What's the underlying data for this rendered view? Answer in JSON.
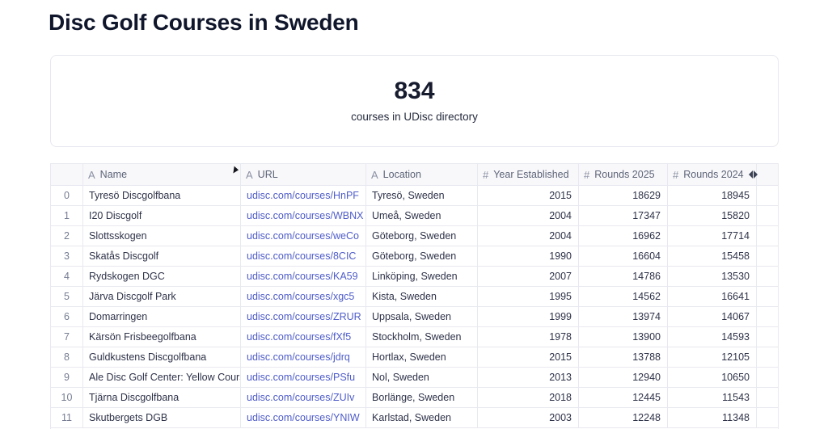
{
  "page": {
    "title": "Disc Golf Courses in Sweden"
  },
  "metric_card": {
    "value": "834",
    "label": "courses in UDisc directory"
  },
  "table": {
    "columns": [
      {
        "icon": "A",
        "label": "Name",
        "field": "name",
        "align": "left"
      },
      {
        "icon": "A",
        "label": "URL",
        "field": "url",
        "align": "left"
      },
      {
        "icon": "A",
        "label": "Location",
        "field": "location",
        "align": "left"
      },
      {
        "icon": "#",
        "label": "Year Established",
        "field": "year",
        "align": "right"
      },
      {
        "icon": "#",
        "label": "Rounds 2025",
        "field": "rounds2025",
        "align": "right"
      },
      {
        "icon": "#",
        "label": "Rounds 2024",
        "field": "rounds2024",
        "align": "right"
      }
    ],
    "rows": [
      {
        "index": "0",
        "name": "Tyresö Discgolfbana",
        "url": "udisc.com/courses/HnPF",
        "location": "Tyresö, Sweden",
        "year": "2015",
        "rounds2025": "18629",
        "rounds2024": "18945"
      },
      {
        "index": "1",
        "name": "I20 Discgolf",
        "url": "udisc.com/courses/WBNX",
        "location": "Umeå, Sweden",
        "year": "2004",
        "rounds2025": "17347",
        "rounds2024": "15820"
      },
      {
        "index": "2",
        "name": "Slottsskogen",
        "url": "udisc.com/courses/weCo",
        "location": "Göteborg, Sweden",
        "year": "2004",
        "rounds2025": "16962",
        "rounds2024": "17714"
      },
      {
        "index": "3",
        "name": "Skatås Discgolf",
        "url": "udisc.com/courses/8CIC",
        "location": "Göteborg, Sweden",
        "year": "1990",
        "rounds2025": "16604",
        "rounds2024": "15458"
      },
      {
        "index": "4",
        "name": "Rydskogen DGC",
        "url": "udisc.com/courses/KA59",
        "location": "Linköping, Sweden",
        "year": "2007",
        "rounds2025": "14786",
        "rounds2024": "13530"
      },
      {
        "index": "5",
        "name": "Järva Discgolf Park",
        "url": "udisc.com/courses/xgc5",
        "location": "Kista, Sweden",
        "year": "1995",
        "rounds2025": "14562",
        "rounds2024": "16641"
      },
      {
        "index": "6",
        "name": "Domarringen",
        "url": "udisc.com/courses/ZRUR",
        "location": "Uppsala, Sweden",
        "year": "1999",
        "rounds2025": "13974",
        "rounds2024": "14067"
      },
      {
        "index": "7",
        "name": "Kärsön Frisbeegolfbana",
        "url": "udisc.com/courses/fXf5",
        "location": "Stockholm, Sweden",
        "year": "1978",
        "rounds2025": "13900",
        "rounds2024": "14593"
      },
      {
        "index": "8",
        "name": "Guldkustens Discgolfbana",
        "url": "udisc.com/courses/jdrq",
        "location": "Hortlax, Sweden",
        "year": "2015",
        "rounds2025": "13788",
        "rounds2024": "12105"
      },
      {
        "index": "9",
        "name": "Ale Disc Golf Center: Yellow Course",
        "url": "udisc.com/courses/PSfu",
        "location": "Nol, Sweden",
        "year": "2013",
        "rounds2025": "12940",
        "rounds2024": "10650"
      },
      {
        "index": "10",
        "name": "Tjärna Discgolfbana",
        "url": "udisc.com/courses/ZUIv",
        "location": "Borlänge, Sweden",
        "year": "2018",
        "rounds2025": "12445",
        "rounds2024": "11543"
      },
      {
        "index": "11",
        "name": "Skutbergets DGB",
        "url": "udisc.com/courses/YNIW",
        "location": "Karlstad, Sweden",
        "year": "2003",
        "rounds2025": "12248",
        "rounds2024": "11348"
      }
    ]
  },
  "colors": {
    "link": "#4e5cc9",
    "title": "#10162b",
    "cell-text": "#2e3248",
    "header-bg": "#f8f8fa",
    "border": "#e8e8f0"
  }
}
